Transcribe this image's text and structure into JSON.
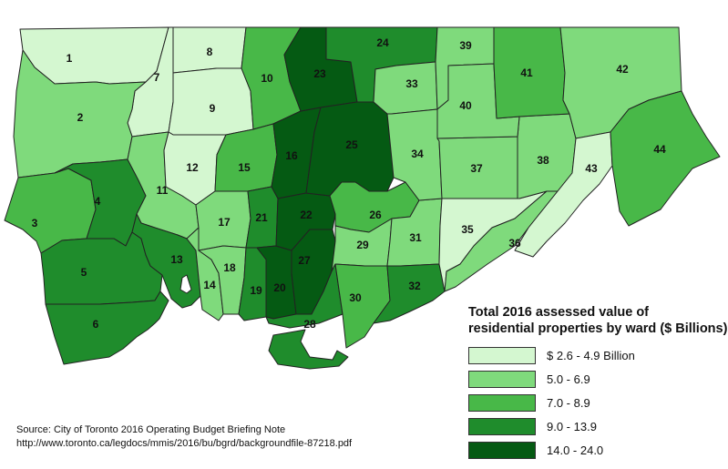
{
  "legend": {
    "title_line1": "Total 2016 assessed value of",
    "title_line2": "residential properties by ward ($ Billions)",
    "classes": [
      {
        "label": "$ 2.6 - 4.9 Billion",
        "color": "#d4f7d0",
        "min": 2.6,
        "max": 4.9
      },
      {
        "label": "5.0 - 6.9",
        "color": "#7fda7c",
        "min": 5.0,
        "max": 6.9
      },
      {
        "label": "7.0 - 8.9",
        "color": "#48b848",
        "min": 7.0,
        "max": 8.9
      },
      {
        "label": "9.0 - 13.9",
        "color": "#1f8c2c",
        "min": 9.0,
        "max": 13.9
      },
      {
        "label": "14.0 - 24.0",
        "color": "#055a13",
        "min": 14.0,
        "max": 24.0
      }
    ]
  },
  "wards": [
    {
      "id": "1",
      "value_class": 0
    },
    {
      "id": "2",
      "value_class": 1
    },
    {
      "id": "3",
      "value_class": 2
    },
    {
      "id": "4",
      "value_class": 3
    },
    {
      "id": "5",
      "value_class": 3
    },
    {
      "id": "6",
      "value_class": 3
    },
    {
      "id": "7",
      "value_class": 0
    },
    {
      "id": "8",
      "value_class": 0
    },
    {
      "id": "9",
      "value_class": 0
    },
    {
      "id": "10",
      "value_class": 2
    },
    {
      "id": "11",
      "value_class": 1
    },
    {
      "id": "12",
      "value_class": 0
    },
    {
      "id": "13",
      "value_class": 3
    },
    {
      "id": "14",
      "value_class": 1
    },
    {
      "id": "15",
      "value_class": 2
    },
    {
      "id": "16",
      "value_class": 4
    },
    {
      "id": "17",
      "value_class": 1
    },
    {
      "id": "18",
      "value_class": 1
    },
    {
      "id": "19",
      "value_class": 3
    },
    {
      "id": "20",
      "value_class": 4
    },
    {
      "id": "21",
      "value_class": 3
    },
    {
      "id": "22",
      "value_class": 4
    },
    {
      "id": "23",
      "value_class": 4
    },
    {
      "id": "24",
      "value_class": 3
    },
    {
      "id": "25",
      "value_class": 4
    },
    {
      "id": "26",
      "value_class": 2
    },
    {
      "id": "27",
      "value_class": 4
    },
    {
      "id": "28",
      "value_class": 3
    },
    {
      "id": "29",
      "value_class": 1
    },
    {
      "id": "30",
      "value_class": 2
    },
    {
      "id": "31",
      "value_class": 1
    },
    {
      "id": "32",
      "value_class": 3
    },
    {
      "id": "33",
      "value_class": 1
    },
    {
      "id": "34",
      "value_class": 1
    },
    {
      "id": "35",
      "value_class": 0
    },
    {
      "id": "36",
      "value_class": 1
    },
    {
      "id": "37",
      "value_class": 1
    },
    {
      "id": "38",
      "value_class": 1
    },
    {
      "id": "39",
      "value_class": 1
    },
    {
      "id": "40",
      "value_class": 1
    },
    {
      "id": "41",
      "value_class": 2
    },
    {
      "id": "42",
      "value_class": 1
    },
    {
      "id": "43",
      "value_class": 0
    },
    {
      "id": "44",
      "value_class": 2
    }
  ],
  "source": {
    "line1": "Source: City of Toronto 2016 Operating Budget Briefing Note",
    "line2": "http://www.toronto.ca/legdocs/mmis/2016/bu/bgrd/backgroundfile-87218.pdf"
  }
}
